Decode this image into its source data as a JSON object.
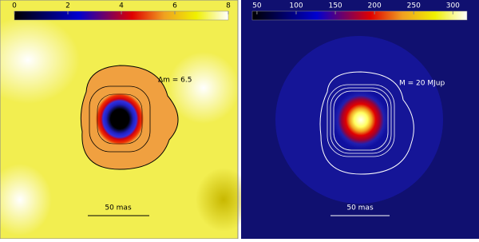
{
  "panels": [
    {
      "colorbar": {
        "range": [
          0,
          8
        ],
        "ticks": [
          0,
          2,
          4,
          6,
          8
        ]
      },
      "annotation": "Δm = 6.5",
      "scale_label": "50 mas"
    },
    {
      "colorbar": {
        "range": [
          44,
          318
        ],
        "ticks": [
          50,
          100,
          150,
          200,
          250,
          300
        ]
      },
      "annotation": "M = 20 MJup",
      "scale_label": "50 mas"
    }
  ]
}
